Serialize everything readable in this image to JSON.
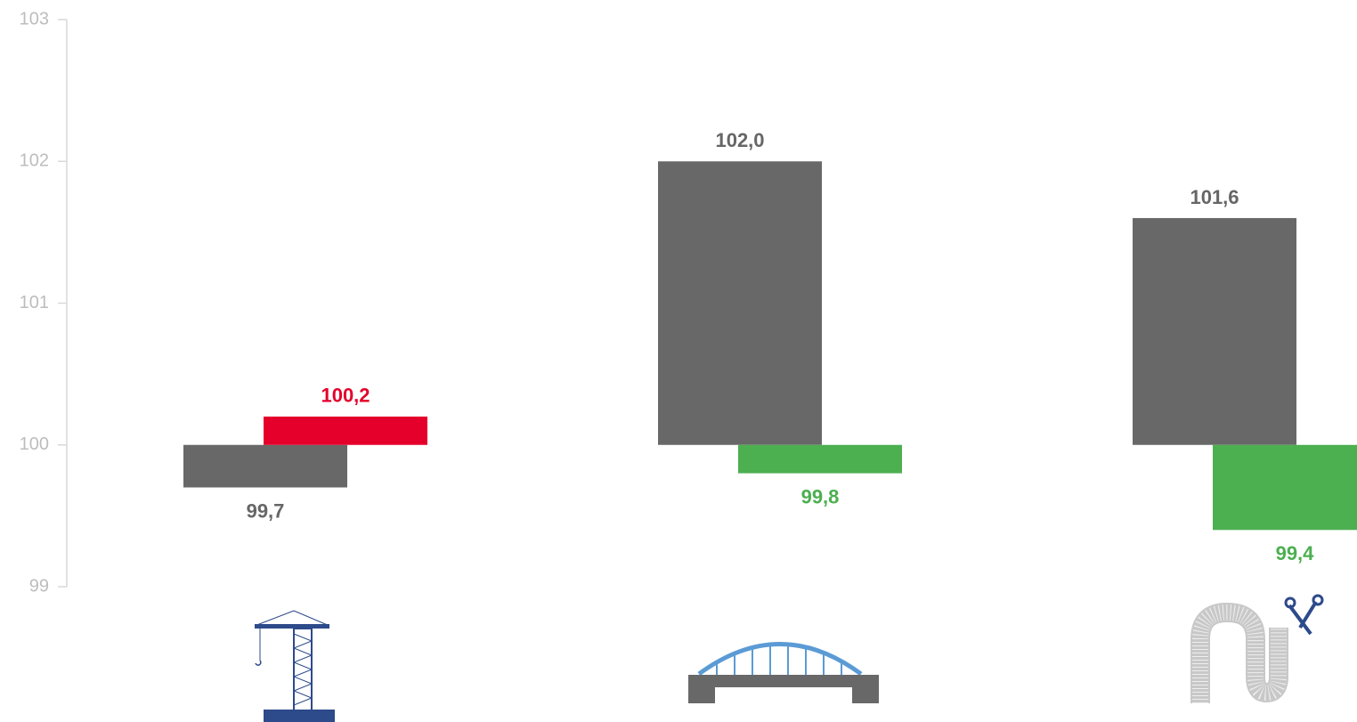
{
  "chart_data": {
    "type": "bar",
    "categories": [
      null,
      null,
      null
    ],
    "baseline": 100,
    "series": [
      {
        "color": "#686868",
        "label_color": "#666666",
        "values": [
          99.7,
          102.0,
          101.6
        ],
        "value_labels": [
          "99,7",
          "102,0",
          "101,6"
        ]
      },
      {
        "colors": [
          "#e4002b",
          "#4caf50",
          "#4caf50"
        ],
        "values": [
          100.2,
          99.8,
          99.4
        ],
        "value_labels": [
          "100,2",
          "99,8",
          "99,4"
        ]
      }
    ],
    "ylim": [
      99,
      103
    ],
    "yticks": [
      99,
      100,
      101,
      102,
      103
    ],
    "grid": false
  }
}
